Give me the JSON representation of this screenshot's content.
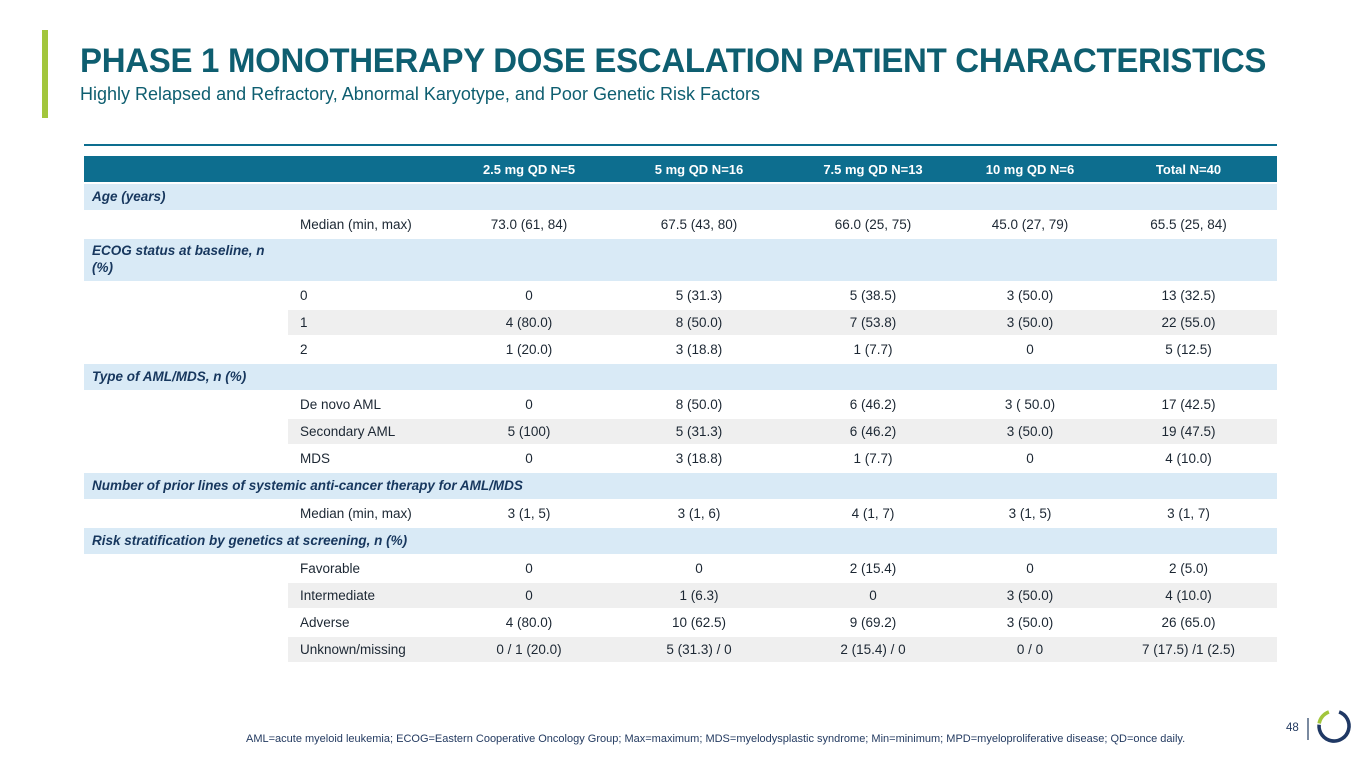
{
  "slide": {
    "title": "PHASE 1 MONOTHERAPY DOSE ESCALATION PATIENT CHARACTERISTICS",
    "subtitle": "Highly Relapsed and Refractory, Abnormal Karyotype, and Poor Genetic Risk Factors",
    "footnote": "AML=acute myeloid leukemia; ECOG=Eastern Cooperative Oncology Group; Max=maximum; MDS=myelodysplastic syndrome; Min=minimum; MPD=myeloproliferative disease; QD=once daily.",
    "page_number": "48"
  },
  "colors": {
    "header_teal": "#0d6e8f",
    "section_blue": "#d9eaf6",
    "stripe_gray": "#efefef",
    "title_teal": "#0e5e70",
    "accent_green": "#a2c63c",
    "logo_navy": "#1f3864",
    "text_dark": "#1c2733",
    "footnote_navy": "#243b61"
  },
  "logo": {
    "name": "ring-logo"
  },
  "table": {
    "column_headers": [
      "2.5 mg QD N=5",
      "5 mg QD N=16",
      "7.5 mg QD N=13",
      "10 mg QD N=6",
      "Total N=40"
    ],
    "sections": [
      {
        "label": "Age (years)",
        "wrap": false,
        "rows": [
          {
            "label": "Median (min, max)",
            "values": [
              "73.0 (61, 84)",
              "67.5 (43, 80)",
              "66.0 (25, 75)",
              "45.0 (27, 79)",
              "65.5 (25, 84)"
            ]
          }
        ]
      },
      {
        "label": "ECOG status at baseline, n (%)",
        "wrap": true,
        "rows": [
          {
            "label": "0",
            "values": [
              "0",
              "5 (31.3)",
              "5 (38.5)",
              "3 (50.0)",
              "13 (32.5)"
            ]
          },
          {
            "label": "1",
            "values": [
              "4 (80.0)",
              "8 (50.0)",
              "7 (53.8)",
              "3 (50.0)",
              "22 (55.0)"
            ]
          },
          {
            "label": "2",
            "values": [
              "1 (20.0)",
              "3 (18.8)",
              "1 (7.7)",
              "0",
              "5 (12.5)"
            ]
          }
        ]
      },
      {
        "label": "Type of AML/MDS, n (%)",
        "wrap": false,
        "rows": [
          {
            "label": "De novo AML",
            "values": [
              "0",
              "8 (50.0)",
              "6 (46.2)",
              "3 ( 50.0)",
              "17 (42.5)"
            ]
          },
          {
            "label": "Secondary AML",
            "values": [
              "5 (100)",
              "5 (31.3)",
              "6 (46.2)",
              "3 (50.0)",
              "19 (47.5)"
            ]
          },
          {
            "label": "MDS",
            "values": [
              "0",
              "3 (18.8)",
              "1 (7.7)",
              "0",
              "4 (10.0)"
            ]
          }
        ]
      },
      {
        "label": "Number of prior lines of systemic anti-cancer therapy for AML/MDS",
        "wrap": false,
        "rows": [
          {
            "label": "Median (min, max)",
            "values": [
              "3 (1, 5)",
              "3 (1, 6)",
              "4 (1, 7)",
              "3 (1, 5)",
              "3 (1, 7)"
            ]
          }
        ]
      },
      {
        "label": "Risk stratification by genetics at screening, n (%)",
        "wrap": false,
        "rows": [
          {
            "label": "Favorable",
            "values": [
              "0",
              "0",
              "2 (15.4)",
              "0",
              "2 (5.0)"
            ]
          },
          {
            "label": "Intermediate",
            "values": [
              "0",
              "1 (6.3)",
              "0",
              "3 (50.0)",
              "4 (10.0)"
            ]
          },
          {
            "label": "Adverse",
            "values": [
              "4 (80.0)",
              "10 (62.5)",
              "9 (69.2)",
              "3 (50.0)",
              "26 (65.0)"
            ]
          },
          {
            "label": "Unknown/missing",
            "values": [
              "0 / 1 (20.0)",
              "5 (31.3) / 0",
              "2 (15.4) / 0",
              "0 / 0",
              "7 (17.5) /1 (2.5)"
            ]
          }
        ]
      }
    ]
  }
}
